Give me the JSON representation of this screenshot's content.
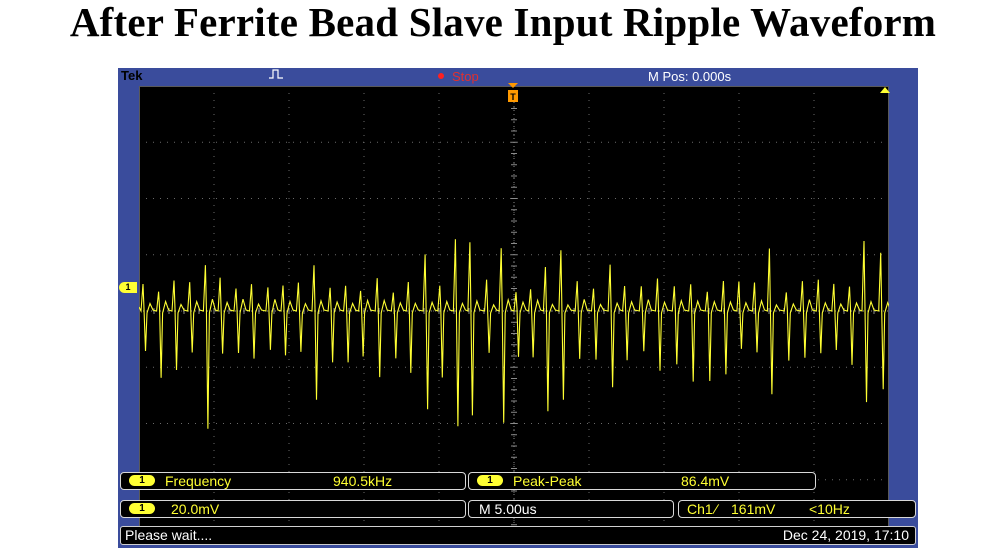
{
  "title": "After Ferrite Bead Slave Input Ripple Waveform",
  "scope": {
    "brand": "Tek",
    "run_status": "Stop",
    "m_pos": "M Pos: 0.000s",
    "channel_marker": "1",
    "measurements": [
      {
        "channel": "1",
        "label": "Frequency",
        "value": "940.5kHz"
      },
      {
        "channel": "1",
        "label": "Peak-Peak",
        "value": "86.4mV"
      }
    ],
    "ch1_scale": "20.0mV",
    "timebase": "M 5.00us",
    "trigger": {
      "source": "Ch1",
      "slope_symbol": "∕",
      "level": "161mV",
      "freq": "<10Hz"
    },
    "status": "Please wait....",
    "timestamp": "Dec 24, 2019, 17:10",
    "colors": {
      "trace": "#ffff33",
      "frame": "#3a4c9c",
      "screen": "#000000",
      "stop": "#e03030",
      "trigger": "#ff9900"
    },
    "icons": [
      "trigger-mode-icon",
      "stop-indicator-icon",
      "trigger-position-icon",
      "trigger-level-icon",
      "channel-1-marker-icon"
    ]
  }
}
